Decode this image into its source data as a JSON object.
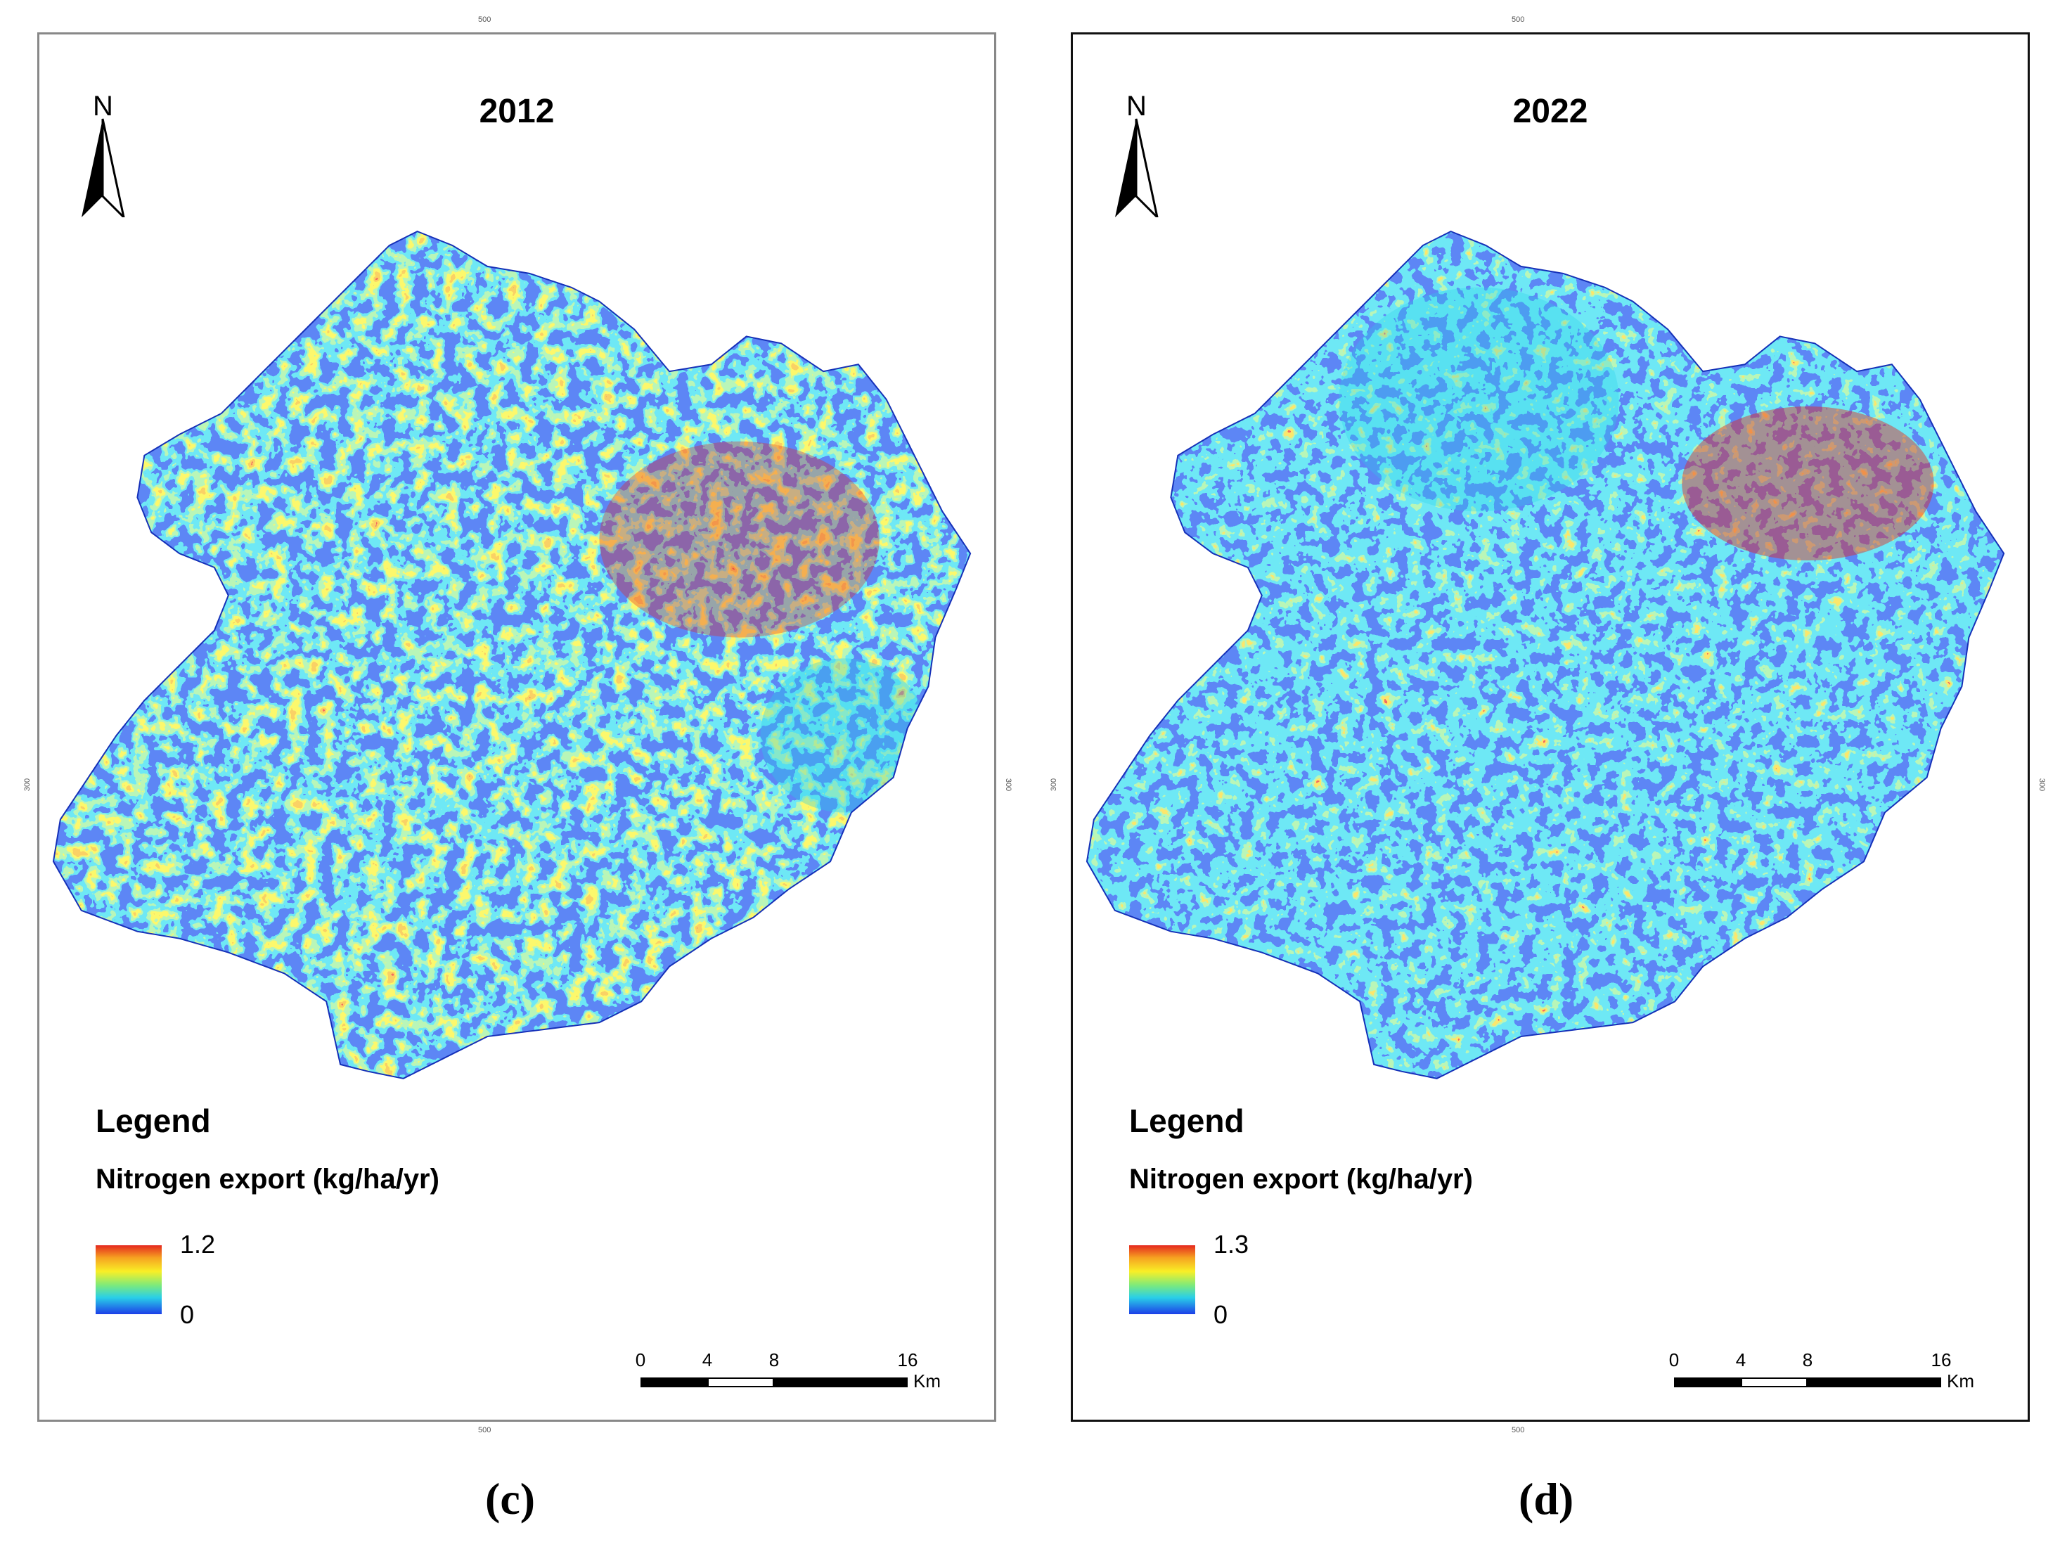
{
  "panels": [
    {
      "year": "2012",
      "north_label": "N",
      "legend_title": "Legend",
      "legend_variable": "Nitrogen export (kg/ha/yr)",
      "legend_max": "1.2",
      "legend_min": "0",
      "scale_labels": [
        "0",
        "4",
        "8",
        "16"
      ],
      "scale_unit": "Km",
      "coord_top": "500",
      "coord_bottom": "500",
      "coord_left": "300",
      "coord_right": "300",
      "caption": "(c)"
    },
    {
      "year": "2022",
      "north_label": "N",
      "legend_title": "Legend",
      "legend_variable": "Nitrogen export (kg/ha/yr)",
      "legend_max": "1.3",
      "legend_min": "0",
      "scale_labels": [
        "0",
        "4",
        "8",
        "16"
      ],
      "scale_unit": "Km",
      "coord_top": "500",
      "coord_bottom": "500",
      "coord_left": "300",
      "coord_right": "300",
      "caption": "(d)"
    }
  ],
  "colors": {
    "low": "#1c3ee8",
    "mid_low": "#29cfe8",
    "mid": "#7dea7b",
    "mid_high": "#f9ef26",
    "high_mid": "#f6a221",
    "high": "#e5281e"
  }
}
